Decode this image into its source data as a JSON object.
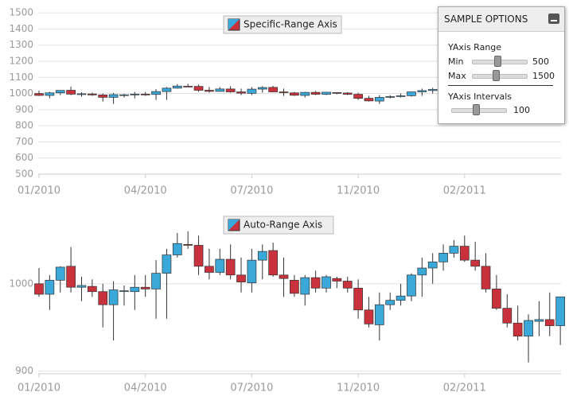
{
  "chart_data": [
    {
      "type": "candlestick",
      "title": "Specific-Range Axis",
      "categories": [
        "01/2010",
        null,
        null,
        null,
        null,
        null,
        null,
        null,
        null,
        null,
        "04/2010",
        null,
        null,
        null,
        null,
        null,
        null,
        null,
        null,
        null,
        "07/2010",
        null,
        null,
        null,
        null,
        null,
        null,
        null,
        null,
        null,
        "11/2010",
        null,
        null,
        null,
        null,
        null,
        null,
        null,
        null,
        null,
        "02/2011",
        null,
        null,
        null,
        null,
        null,
        null,
        null,
        null,
        null
      ],
      "open": [
        1000,
        988,
        1004,
        1020,
        996,
        997,
        991,
        976,
        992,
        991,
        996,
        994,
        1012,
        1033,
        1045,
        1044,
        1020,
        1013,
        1028,
        1010,
        1001,
        1027,
        1038,
        1010,
        1004,
        988,
        1007,
        995,
        1006,
        1003,
        995,
        970,
        953,
        976,
        981,
        986,
        1010,
        1018,
        1025,
        1035,
        1043,
        1027,
        1020,
        994,
        972,
        955,
        940,
        957,
        959,
        952
      ],
      "high": [
        1018,
        1010,
        1020,
        1042,
        1008,
        1005,
        1000,
        1003,
        998,
        1010,
        1010,
        1027,
        1040,
        1058,
        1060,
        1055,
        1040,
        1040,
        1045,
        1030,
        1040,
        1045,
        1047,
        1030,
        1010,
        1010,
        1015,
        1010,
        1008,
        1008,
        1005,
        985,
        990,
        990,
        1000,
        1012,
        1030,
        1035,
        1045,
        1050,
        1055,
        1048,
        1035,
        1010,
        988,
        975,
        965,
        980,
        990,
        985
      ],
      "low": [
        985,
        970,
        990,
        990,
        980,
        985,
        950,
        935,
        975,
        970,
        985,
        960,
        960,
        1030,
        1040,
        1010,
        1005,
        1010,
        1005,
        990,
        990,
        1005,
        1008,
        985,
        985,
        975,
        990,
        990,
        995,
        990,
        960,
        950,
        935,
        970,
        975,
        980,
        985,
        1000,
        1015,
        1030,
        1025,
        1015,
        990,
        970,
        950,
        935,
        910,
        940,
        940,
        930
      ],
      "close": [
        988,
        1004,
        1019,
        996,
        998,
        991,
        976,
        993,
        992,
        996,
        994,
        1012,
        1033,
        1046,
        1044,
        1020,
        1013,
        1028,
        1010,
        1002,
        1027,
        1037,
        1010,
        1006,
        989,
        1007,
        995,
        1008,
        1003,
        995,
        970,
        954,
        976,
        981,
        986,
        1010,
        1018,
        1025,
        1035,
        1043,
        1027,
        1020,
        994,
        972,
        955,
        940,
        958,
        959,
        952,
        985
      ],
      "up_color": "#3aa8d8",
      "down_color": "#c9313d",
      "ylim": [
        500,
        1540
      ],
      "yticks": [
        500,
        600,
        700,
        800,
        900,
        1000,
        1100,
        1200,
        1300,
        1400,
        1500
      ],
      "grid": true
    },
    {
      "type": "candlestick",
      "title": "Auto-Range Axis",
      "categories": [
        "01/2010",
        null,
        null,
        null,
        null,
        null,
        null,
        null,
        null,
        null,
        "04/2010",
        null,
        null,
        null,
        null,
        null,
        null,
        null,
        null,
        null,
        "07/2010",
        null,
        null,
        null,
        null,
        null,
        null,
        null,
        null,
        null,
        "11/2010",
        null,
        null,
        null,
        null,
        null,
        null,
        null,
        null,
        null,
        "02/2011",
        null,
        null,
        null,
        null,
        null,
        null,
        null,
        null,
        null
      ],
      "open": [
        1000,
        988,
        1004,
        1020,
        996,
        997,
        991,
        976,
        992,
        991,
        996,
        994,
        1012,
        1033,
        1045,
        1044,
        1020,
        1013,
        1028,
        1010,
        1001,
        1027,
        1038,
        1010,
        1004,
        988,
        1007,
        995,
        1006,
        1003,
        995,
        970,
        953,
        976,
        981,
        986,
        1010,
        1018,
        1025,
        1035,
        1043,
        1027,
        1020,
        994,
        972,
        955,
        940,
        957,
        959,
        952
      ],
      "high": [
        1018,
        1010,
        1020,
        1042,
        1008,
        1005,
        1000,
        1003,
        998,
        1010,
        1010,
        1027,
        1040,
        1058,
        1060,
        1055,
        1040,
        1040,
        1045,
        1030,
        1040,
        1045,
        1047,
        1030,
        1010,
        1010,
        1015,
        1010,
        1008,
        1008,
        1005,
        985,
        990,
        990,
        1000,
        1012,
        1030,
        1035,
        1045,
        1050,
        1055,
        1048,
        1035,
        1010,
        988,
        975,
        965,
        980,
        990,
        985
      ],
      "low": [
        985,
        970,
        990,
        990,
        980,
        985,
        950,
        935,
        975,
        970,
        985,
        960,
        960,
        1030,
        1040,
        1010,
        1005,
        1010,
        1005,
        990,
        990,
        1005,
        1008,
        985,
        985,
        975,
        990,
        990,
        995,
        990,
        960,
        950,
        935,
        970,
        975,
        980,
        985,
        1000,
        1015,
        1030,
        1025,
        1015,
        990,
        970,
        950,
        935,
        910,
        940,
        940,
        930
      ],
      "close": [
        988,
        1004,
        1019,
        996,
        998,
        991,
        976,
        993,
        992,
        996,
        994,
        1012,
        1033,
        1046,
        1044,
        1020,
        1013,
        1028,
        1010,
        1002,
        1027,
        1037,
        1010,
        1006,
        989,
        1007,
        995,
        1008,
        1003,
        995,
        970,
        954,
        976,
        981,
        986,
        1010,
        1018,
        1025,
        1035,
        1043,
        1027,
        1020,
        994,
        972,
        955,
        940,
        958,
        959,
        952,
        985
      ],
      "up_color": "#3aa8d8",
      "down_color": "#c9313d",
      "ylim": [
        897,
        1079
      ],
      "yticks": [
        900,
        1000
      ],
      "grid": true
    }
  ],
  "options_panel": {
    "title": "SAMPLE OPTIONS",
    "range_label": "YAxis Range",
    "min_label": "Min",
    "min_value": 500,
    "max_label": "Max",
    "max_value": 1500,
    "intervals_label": "YAxis Intervals",
    "intervals_value": 100
  }
}
